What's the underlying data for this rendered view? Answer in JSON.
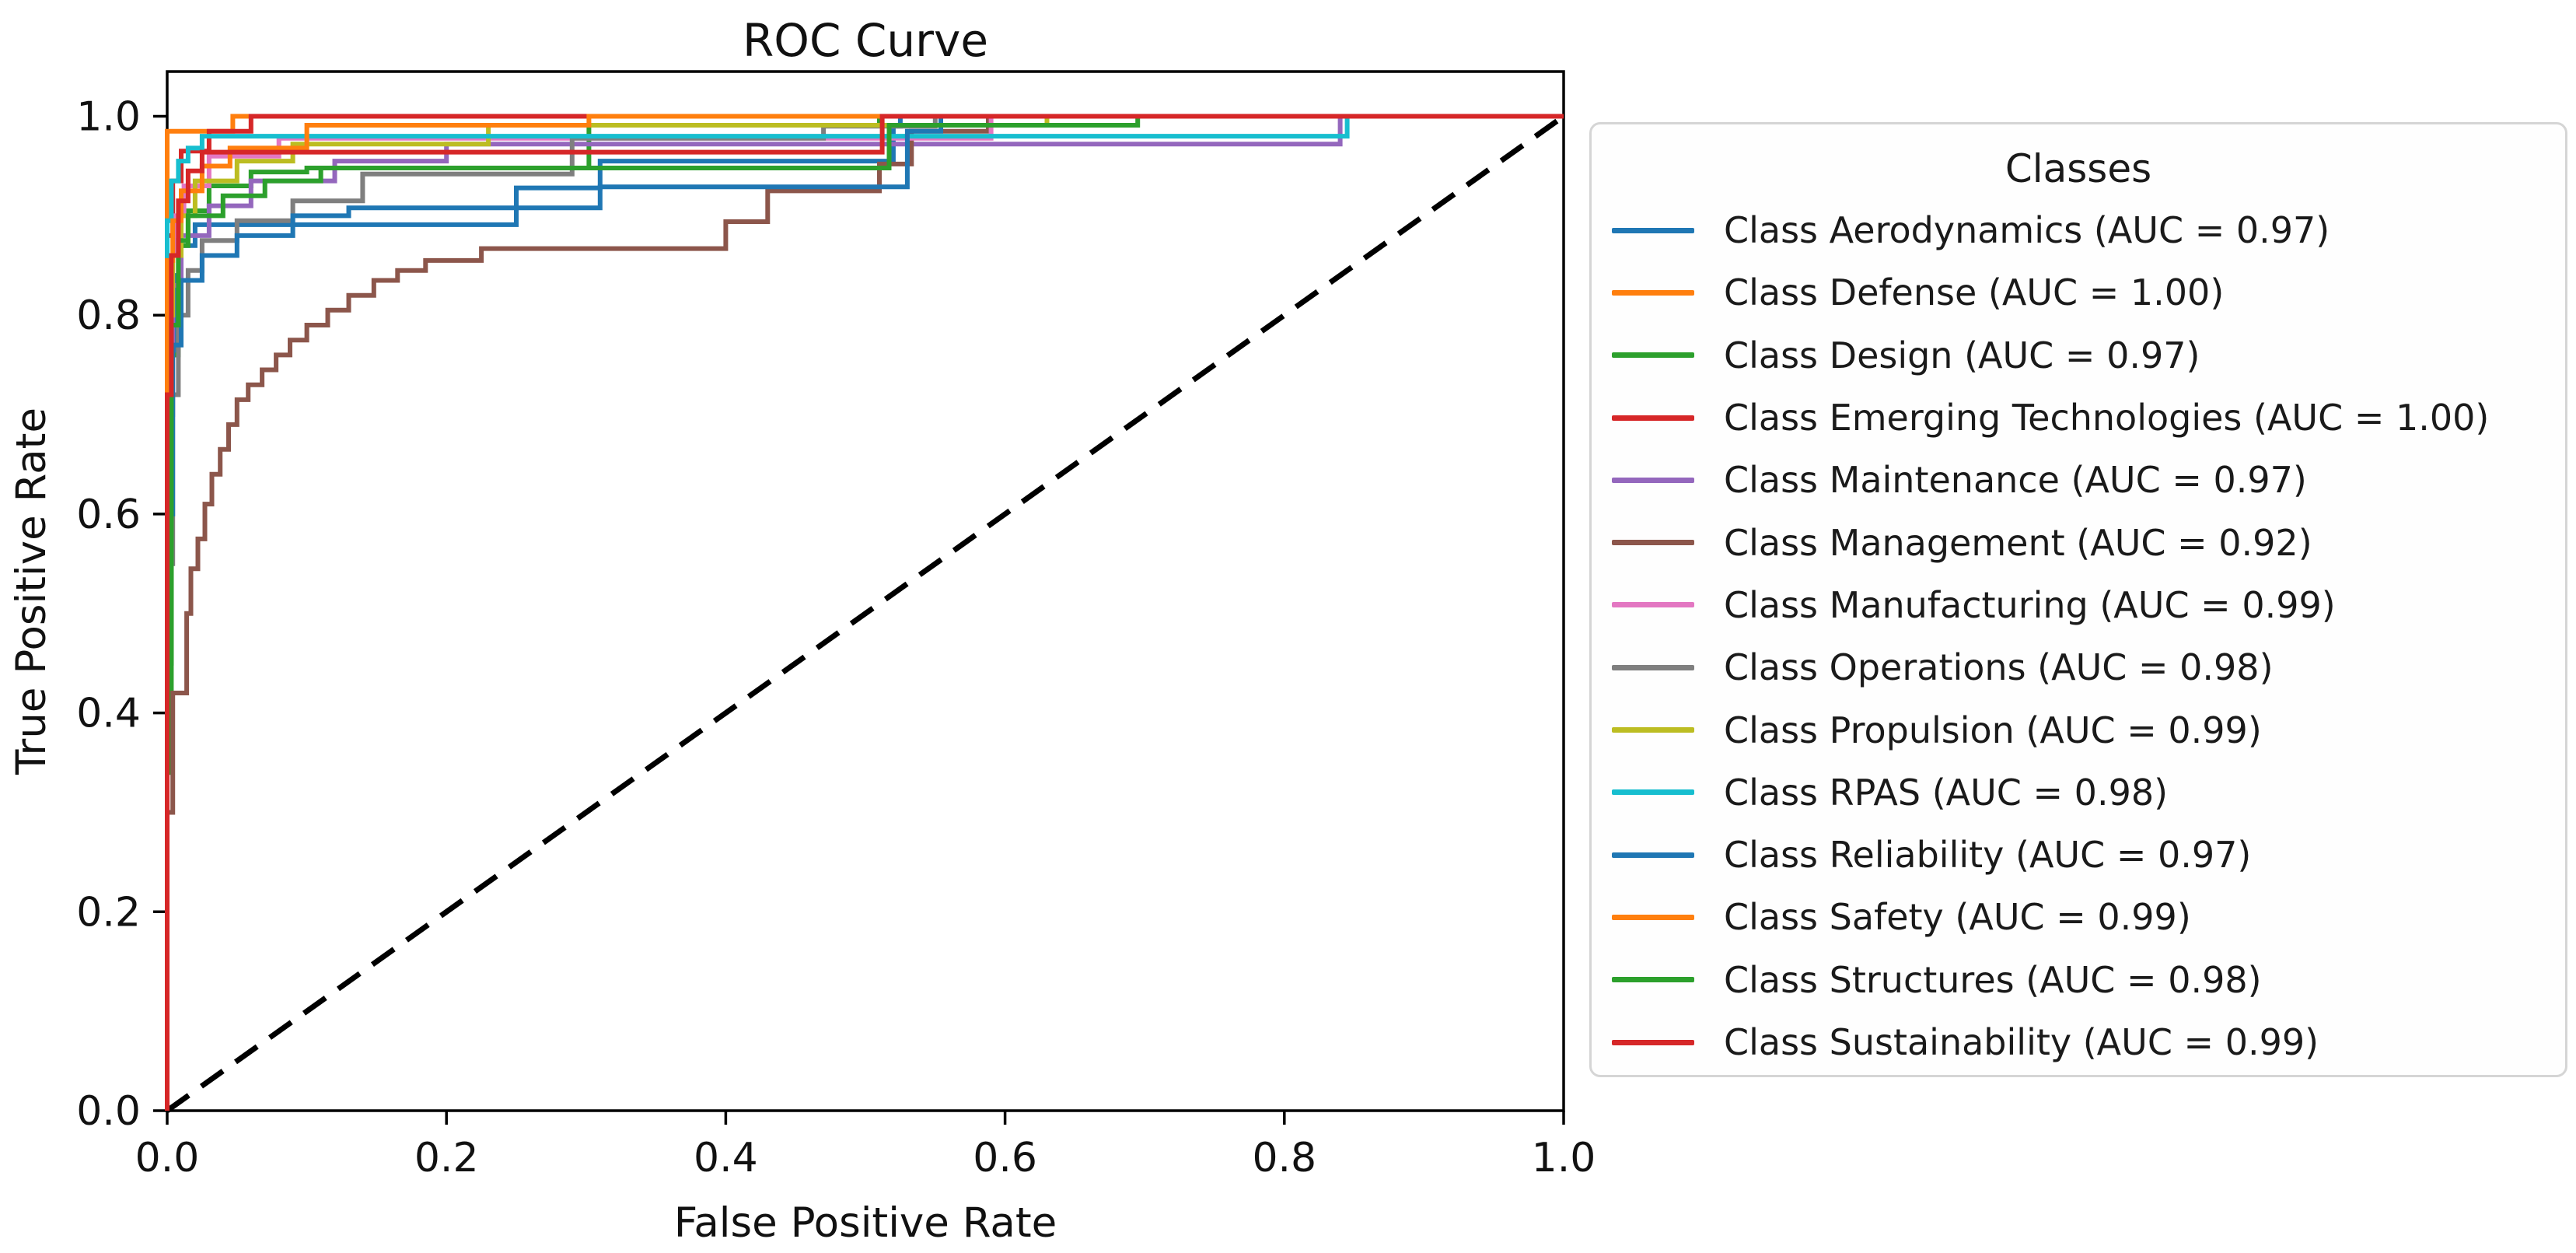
{
  "chart_data": {
    "type": "line",
    "title": "ROC Curve",
    "xlabel": "False Positive Rate",
    "ylabel": "True Positive Rate",
    "xlim": [
      0,
      1.0
    ],
    "ylim": [
      0,
      1.045
    ],
    "grid": false,
    "frame": "box",
    "x_tick_values": [
      0,
      0.2,
      0.4,
      0.6,
      0.8,
      1.0
    ],
    "x_tick_labels": [
      "0.0",
      "0.2",
      "0.4",
      "0.6",
      "0.8",
      "1.0"
    ],
    "y_tick_values": [
      0,
      0.2,
      0.4,
      0.6,
      0.8,
      1.0
    ],
    "y_tick_labels": [
      "0.0",
      "0.2",
      "0.4",
      "0.6",
      "0.8",
      "1.0"
    ],
    "diagonal_reference_line": {
      "points": [
        [
          0,
          0
        ],
        [
          1,
          1
        ]
      ],
      "style": "dashed",
      "color": "#000000"
    },
    "series": [
      {
        "name": "Aerodynamics",
        "auc": "0.97",
        "color": "#1f77b4",
        "label": "Class Aerodynamics (AUC = 0.97)",
        "points": [
          [
            0,
            0
          ],
          [
            0,
            0.76
          ],
          [
            0.005,
            0.76
          ],
          [
            0.005,
            0.84
          ],
          [
            0.01,
            0.84
          ],
          [
            0.01,
            0.87
          ],
          [
            0.02,
            0.87
          ],
          [
            0.02,
            0.891
          ],
          [
            0.25,
            0.891
          ],
          [
            0.25,
            0.928
          ],
          [
            0.31,
            0.928
          ],
          [
            0.31,
            0.955
          ],
          [
            0.52,
            0.955
          ],
          [
            0.52,
            0.99
          ],
          [
            0.525,
            0.99
          ],
          [
            0.525,
            1
          ],
          [
            1,
            1
          ]
        ]
      },
      {
        "name": "Defense",
        "auc": "1.00",
        "color": "#ff7f0e",
        "label": "Class Defense (AUC = 1.00)",
        "points": [
          [
            0,
            0
          ],
          [
            0,
            0.985
          ],
          [
            0.047,
            0.985
          ],
          [
            0.047,
            1
          ],
          [
            1,
            1
          ]
        ]
      },
      {
        "name": "Design",
        "auc": "0.97",
        "color": "#2ca02c",
        "label": "Class Design (AUC = 0.97)",
        "points": [
          [
            0,
            0
          ],
          [
            0,
            0.34
          ],
          [
            0.003,
            0.34
          ],
          [
            0.003,
            0.76
          ],
          [
            0.008,
            0.76
          ],
          [
            0.008,
            0.87
          ],
          [
            0.015,
            0.87
          ],
          [
            0.015,
            0.905
          ],
          [
            0.03,
            0.905
          ],
          [
            0.03,
            0.93
          ],
          [
            0.06,
            0.93
          ],
          [
            0.06,
            0.944
          ],
          [
            0.1,
            0.944
          ],
          [
            0.1,
            0.948
          ],
          [
            0.302,
            0.948
          ],
          [
            0.302,
            0.991
          ],
          [
            0.51,
            0.991
          ],
          [
            0.51,
            1
          ],
          [
            1,
            1
          ]
        ]
      },
      {
        "name": "Emerging Technologies",
        "auc": "1.00",
        "color": "#d62728",
        "label": "Class Emerging Technologies (AUC = 1.00)",
        "points": [
          [
            0,
            0
          ],
          [
            0,
            0.88
          ],
          [
            0.004,
            0.88
          ],
          [
            0.004,
            0.935
          ],
          [
            0.01,
            0.935
          ],
          [
            0.01,
            0.965
          ],
          [
            0.03,
            0.965
          ],
          [
            0.03,
            0.985
          ],
          [
            0.06,
            0.985
          ],
          [
            0.06,
            1
          ],
          [
            1,
            1
          ]
        ]
      },
      {
        "name": "Maintenance",
        "auc": "0.97",
        "color": "#9467bd",
        "label": "Class Maintenance (AUC = 0.97)",
        "points": [
          [
            0,
            0
          ],
          [
            0,
            0.7
          ],
          [
            0.004,
            0.7
          ],
          [
            0.004,
            0.83
          ],
          [
            0.01,
            0.83
          ],
          [
            0.01,
            0.88
          ],
          [
            0.03,
            0.88
          ],
          [
            0.03,
            0.91
          ],
          [
            0.06,
            0.91
          ],
          [
            0.06,
            0.935
          ],
          [
            0.12,
            0.935
          ],
          [
            0.12,
            0.955
          ],
          [
            0.2,
            0.955
          ],
          [
            0.2,
            0.972
          ],
          [
            0.84,
            0.972
          ],
          [
            0.84,
            1
          ],
          [
            1,
            1
          ]
        ]
      },
      {
        "name": "Management",
        "auc": "0.92",
        "color": "#8c564b",
        "label": "Class Management (AUC = 0.92)",
        "points": [
          [
            0,
            0
          ],
          [
            0,
            0.3
          ],
          [
            0.004,
            0.3
          ],
          [
            0.004,
            0.42
          ],
          [
            0.014,
            0.42
          ],
          [
            0.014,
            0.5
          ],
          [
            0.017,
            0.5
          ],
          [
            0.017,
            0.545
          ],
          [
            0.022,
            0.545
          ],
          [
            0.022,
            0.575
          ],
          [
            0.027,
            0.575
          ],
          [
            0.027,
            0.61
          ],
          [
            0.032,
            0.61
          ],
          [
            0.032,
            0.64
          ],
          [
            0.038,
            0.64
          ],
          [
            0.038,
            0.665
          ],
          [
            0.044,
            0.665
          ],
          [
            0.044,
            0.69
          ],
          [
            0.05,
            0.69
          ],
          [
            0.05,
            0.715
          ],
          [
            0.058,
            0.715
          ],
          [
            0.058,
            0.73
          ],
          [
            0.068,
            0.73
          ],
          [
            0.068,
            0.745
          ],
          [
            0.078,
            0.745
          ],
          [
            0.078,
            0.76
          ],
          [
            0.088,
            0.76
          ],
          [
            0.088,
            0.775
          ],
          [
            0.1,
            0.775
          ],
          [
            0.1,
            0.79
          ],
          [
            0.115,
            0.79
          ],
          [
            0.115,
            0.805
          ],
          [
            0.13,
            0.805
          ],
          [
            0.13,
            0.82
          ],
          [
            0.148,
            0.82
          ],
          [
            0.148,
            0.835
          ],
          [
            0.165,
            0.835
          ],
          [
            0.165,
            0.845
          ],
          [
            0.185,
            0.845
          ],
          [
            0.185,
            0.855
          ],
          [
            0.225,
            0.855
          ],
          [
            0.225,
            0.867
          ],
          [
            0.4,
            0.867
          ],
          [
            0.4,
            0.894
          ],
          [
            0.43,
            0.894
          ],
          [
            0.43,
            0.925
          ],
          [
            0.51,
            0.925
          ],
          [
            0.51,
            0.952
          ],
          [
            0.533,
            0.952
          ],
          [
            0.533,
            0.985
          ],
          [
            0.588,
            0.985
          ],
          [
            0.588,
            1
          ],
          [
            1,
            1
          ]
        ]
      },
      {
        "name": "Manufacturing",
        "auc": "0.99",
        "color": "#e377c2",
        "label": "Class Manufacturing (AUC = 0.99)",
        "points": [
          [
            0,
            0
          ],
          [
            0,
            0.86
          ],
          [
            0.006,
            0.86
          ],
          [
            0.006,
            0.9
          ],
          [
            0.012,
            0.9
          ],
          [
            0.012,
            0.93
          ],
          [
            0.03,
            0.93
          ],
          [
            0.03,
            0.96
          ],
          [
            0.08,
            0.96
          ],
          [
            0.08,
            0.978
          ],
          [
            0.59,
            0.978
          ],
          [
            0.59,
            1
          ],
          [
            1,
            1
          ]
        ]
      },
      {
        "name": "Operations",
        "auc": "0.98",
        "color": "#7f7f7f",
        "label": "Class Operations (AUC = 0.98)",
        "points": [
          [
            0,
            0
          ],
          [
            0,
            0.55
          ],
          [
            0.004,
            0.55
          ],
          [
            0.004,
            0.72
          ],
          [
            0.008,
            0.72
          ],
          [
            0.008,
            0.8
          ],
          [
            0.015,
            0.8
          ],
          [
            0.015,
            0.845
          ],
          [
            0.025,
            0.845
          ],
          [
            0.025,
            0.875
          ],
          [
            0.05,
            0.875
          ],
          [
            0.05,
            0.895
          ],
          [
            0.09,
            0.895
          ],
          [
            0.09,
            0.915
          ],
          [
            0.14,
            0.915
          ],
          [
            0.14,
            0.942
          ],
          [
            0.29,
            0.942
          ],
          [
            0.29,
            0.978
          ],
          [
            0.47,
            0.978
          ],
          [
            0.47,
            0.99
          ],
          [
            0.55,
            0.99
          ],
          [
            0.55,
            1
          ],
          [
            1,
            1
          ]
        ]
      },
      {
        "name": "Propulsion",
        "auc": "0.99",
        "color": "#bcbd22",
        "label": "Class Propulsion (AUC = 0.99)",
        "points": [
          [
            0,
            0
          ],
          [
            0,
            0.8
          ],
          [
            0.004,
            0.8
          ],
          [
            0.004,
            0.86
          ],
          [
            0.01,
            0.86
          ],
          [
            0.01,
            0.9
          ],
          [
            0.02,
            0.9
          ],
          [
            0.02,
            0.935
          ],
          [
            0.05,
            0.935
          ],
          [
            0.05,
            0.955
          ],
          [
            0.09,
            0.955
          ],
          [
            0.09,
            0.972
          ],
          [
            0.23,
            0.972
          ],
          [
            0.23,
            0.991
          ],
          [
            0.63,
            0.991
          ],
          [
            0.63,
            1
          ],
          [
            1,
            1
          ]
        ]
      },
      {
        "name": "RPAS",
        "auc": "0.98",
        "color": "#17becf",
        "label": "Class RPAS (AUC = 0.98)",
        "points": [
          [
            0,
            0
          ],
          [
            0,
            0.895
          ],
          [
            0.003,
            0.895
          ],
          [
            0.003,
            0.935
          ],
          [
            0.008,
            0.935
          ],
          [
            0.008,
            0.955
          ],
          [
            0.015,
            0.955
          ],
          [
            0.015,
            0.968
          ],
          [
            0.025,
            0.968
          ],
          [
            0.025,
            0.98
          ],
          [
            0.845,
            0.98
          ],
          [
            0.845,
            1
          ],
          [
            1,
            1
          ]
        ]
      },
      {
        "name": "Reliability",
        "auc": "0.97",
        "color": "#1f77b4",
        "label": "Class Reliability (AUC = 0.97)",
        "points": [
          [
            0,
            0
          ],
          [
            0,
            0.6
          ],
          [
            0.004,
            0.6
          ],
          [
            0.004,
            0.77
          ],
          [
            0.01,
            0.77
          ],
          [
            0.01,
            0.835
          ],
          [
            0.025,
            0.835
          ],
          [
            0.025,
            0.86
          ],
          [
            0.05,
            0.86
          ],
          [
            0.05,
            0.88
          ],
          [
            0.09,
            0.88
          ],
          [
            0.09,
            0.9
          ],
          [
            0.13,
            0.9
          ],
          [
            0.13,
            0.908
          ],
          [
            0.31,
            0.908
          ],
          [
            0.31,
            0.929
          ],
          [
            0.53,
            0.929
          ],
          [
            0.53,
            0.985
          ],
          [
            0.554,
            0.985
          ],
          [
            0.554,
            1
          ],
          [
            1,
            1
          ]
        ]
      },
      {
        "name": "Safety",
        "auc": "0.99",
        "color": "#ff7f0e",
        "label": "Class Safety (AUC = 0.99)",
        "points": [
          [
            0,
            0
          ],
          [
            0,
            0.855
          ],
          [
            0.004,
            0.855
          ],
          [
            0.004,
            0.895
          ],
          [
            0.01,
            0.895
          ],
          [
            0.01,
            0.925
          ],
          [
            0.025,
            0.925
          ],
          [
            0.025,
            0.95
          ],
          [
            0.045,
            0.95
          ],
          [
            0.045,
            0.968
          ],
          [
            0.1,
            0.968
          ],
          [
            0.1,
            0.991
          ],
          [
            0.302,
            0.991
          ],
          [
            0.302,
            1
          ],
          [
            1,
            1
          ]
        ]
      },
      {
        "name": "Structures",
        "auc": "0.98",
        "color": "#2ca02c",
        "label": "Class Structures (AUC = 0.98)",
        "points": [
          [
            0,
            0
          ],
          [
            0,
            0.45
          ],
          [
            0.003,
            0.45
          ],
          [
            0.003,
            0.79
          ],
          [
            0.008,
            0.79
          ],
          [
            0.008,
            0.875
          ],
          [
            0.015,
            0.875
          ],
          [
            0.015,
            0.9
          ],
          [
            0.04,
            0.9
          ],
          [
            0.04,
            0.92
          ],
          [
            0.07,
            0.92
          ],
          [
            0.07,
            0.935
          ],
          [
            0.11,
            0.935
          ],
          [
            0.11,
            0.948
          ],
          [
            0.517,
            0.948
          ],
          [
            0.517,
            0.991
          ],
          [
            0.695,
            0.991
          ],
          [
            0.695,
            1
          ],
          [
            1,
            1
          ]
        ]
      },
      {
        "name": "Sustainability",
        "auc": "0.99",
        "color": "#d62728",
        "label": "Class Sustainability (AUC = 0.99)",
        "points": [
          [
            0,
            0
          ],
          [
            0,
            0.72
          ],
          [
            0.003,
            0.72
          ],
          [
            0.003,
            0.86
          ],
          [
            0.008,
            0.86
          ],
          [
            0.008,
            0.915
          ],
          [
            0.015,
            0.915
          ],
          [
            0.015,
            0.945
          ],
          [
            0.025,
            0.945
          ],
          [
            0.025,
            0.964
          ],
          [
            0.512,
            0.964
          ],
          [
            0.512,
            1
          ],
          [
            1,
            1
          ]
        ]
      }
    ]
  },
  "legend": {
    "title": "Classes",
    "position": "outside-right",
    "border_color": "#d5d5d5",
    "background": "#fefefe"
  },
  "style": {
    "axis_color": "#000000",
    "text_color": "#111111",
    "curve_width": 6,
    "diagonal_width": 7
  }
}
